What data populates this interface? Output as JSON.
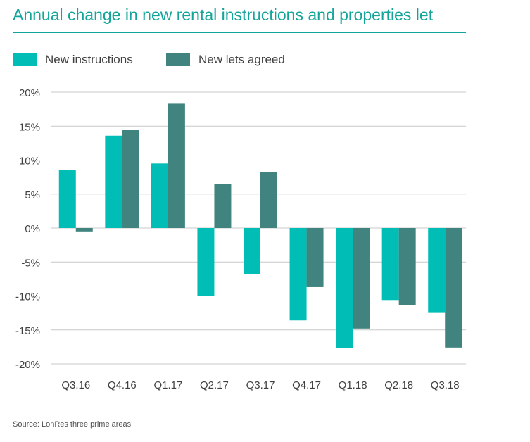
{
  "title": "Annual change in new rental instructions and properties let",
  "source": "Source: LonRes three prime areas",
  "colors": {
    "accent": "#13a59a",
    "new_instructions": "#00bdb5",
    "new_lets_agreed": "#41847f",
    "grid": "#c8c8c8"
  },
  "chart_data": {
    "type": "bar",
    "title": "Annual change in new rental instructions and properties let",
    "xlabel": "",
    "ylabel": "",
    "categories": [
      "Q3.16",
      "Q4.16",
      "Q1.17",
      "Q2.17",
      "Q3.17",
      "Q4.17",
      "Q1.18",
      "Q2.18",
      "Q3.18"
    ],
    "series": [
      {
        "name": "New instructions",
        "values": [
          8.5,
          13.6,
          9.5,
          -10.0,
          -6.8,
          -13.6,
          -17.7,
          -10.6,
          -12.5
        ]
      },
      {
        "name": "New lets agreed",
        "values": [
          -0.5,
          14.5,
          18.3,
          6.5,
          8.2,
          -8.7,
          -14.8,
          -11.3,
          -17.6
        ]
      }
    ],
    "ylim": [
      -20,
      20
    ],
    "yticks": [
      20,
      15,
      10,
      5,
      0,
      -5,
      -10,
      -15,
      -20
    ],
    "ytick_labels": [
      "20%",
      "15%",
      "10%",
      "5%",
      "0%",
      "-5%",
      "-10%",
      "-15%",
      "-20%"
    ],
    "grid": true,
    "legend_position": "top-left"
  }
}
